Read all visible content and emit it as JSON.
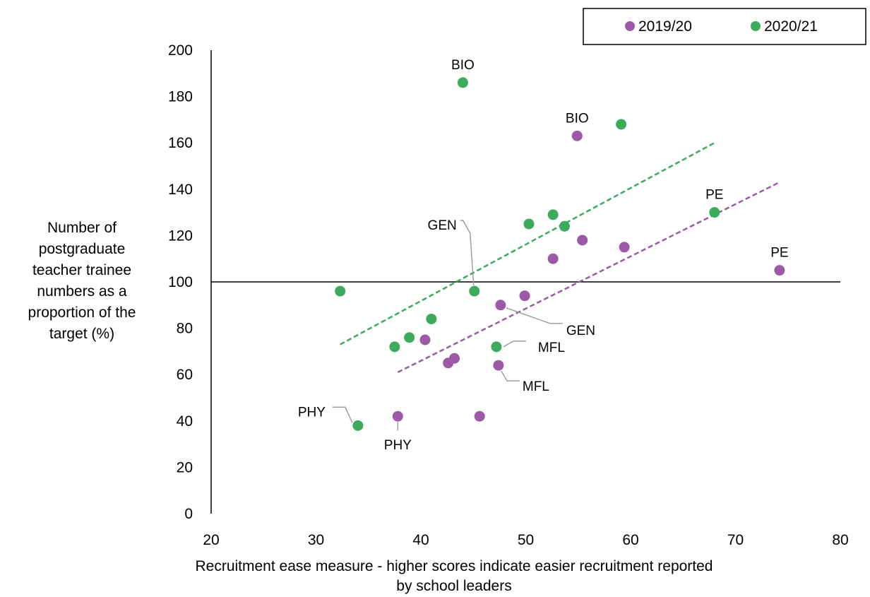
{
  "chart_data": {
    "type": "scatter",
    "xlabel_lines": [
      "Recruitment ease measure - higher scores indicate easier recruitment reported",
      "by school leaders"
    ],
    "ylabel_lines": [
      "Number of",
      "postgraduate",
      "teacher trainee",
      "numbers as a",
      "proportion of the",
      "target (%)"
    ],
    "xlim": [
      20,
      80
    ],
    "ylim": [
      0,
      200
    ],
    "x_ticks": [
      20,
      30,
      40,
      50,
      60,
      70,
      80
    ],
    "y_ticks": [
      0,
      20,
      40,
      60,
      80,
      100,
      120,
      140,
      160,
      180,
      200
    ],
    "reference_line_y": 100,
    "legend": {
      "position": "top-right"
    },
    "series": [
      {
        "name": "2019/20",
        "color": "#9b59a8",
        "points": [
          {
            "x": 37.8,
            "y": 42,
            "label": "PHY"
          },
          {
            "x": 40.4,
            "y": 75
          },
          {
            "x": 42.6,
            "y": 65
          },
          {
            "x": 43.2,
            "y": 67
          },
          {
            "x": 45.6,
            "y": 42
          },
          {
            "x": 47.4,
            "y": 64,
            "label": "MFL"
          },
          {
            "x": 47.6,
            "y": 90,
            "label": "GEN"
          },
          {
            "x": 49.9,
            "y": 94
          },
          {
            "x": 52.6,
            "y": 110
          },
          {
            "x": 54.9,
            "y": 163,
            "label": "BIO"
          },
          {
            "x": 55.4,
            "y": 118
          },
          {
            "x": 59.4,
            "y": 115
          },
          {
            "x": 74.2,
            "y": 105,
            "label": "PE"
          }
        ],
        "trend": {
          "x": [
            37.8,
            74.2
          ],
          "y": [
            61,
            143
          ]
        }
      },
      {
        "name": "2020/21",
        "color": "#3daa5c",
        "points": [
          {
            "x": 32.3,
            "y": 96
          },
          {
            "x": 34.0,
            "y": 38,
            "label": "PHY"
          },
          {
            "x": 37.5,
            "y": 72
          },
          {
            "x": 38.9,
            "y": 76
          },
          {
            "x": 41.0,
            "y": 84
          },
          {
            "x": 44.0,
            "y": 186,
            "label": "BIO"
          },
          {
            "x": 45.1,
            "y": 96,
            "label": "GEN"
          },
          {
            "x": 47.2,
            "y": 72,
            "label": "MFL"
          },
          {
            "x": 50.3,
            "y": 125
          },
          {
            "x": 52.6,
            "y": 129
          },
          {
            "x": 53.7,
            "y": 124
          },
          {
            "x": 59.1,
            "y": 168
          },
          {
            "x": 68.0,
            "y": 130,
            "label": "PE"
          }
        ],
        "trend": {
          "x": [
            32.3,
            68.0
          ],
          "y": [
            73,
            160
          ]
        }
      }
    ]
  }
}
